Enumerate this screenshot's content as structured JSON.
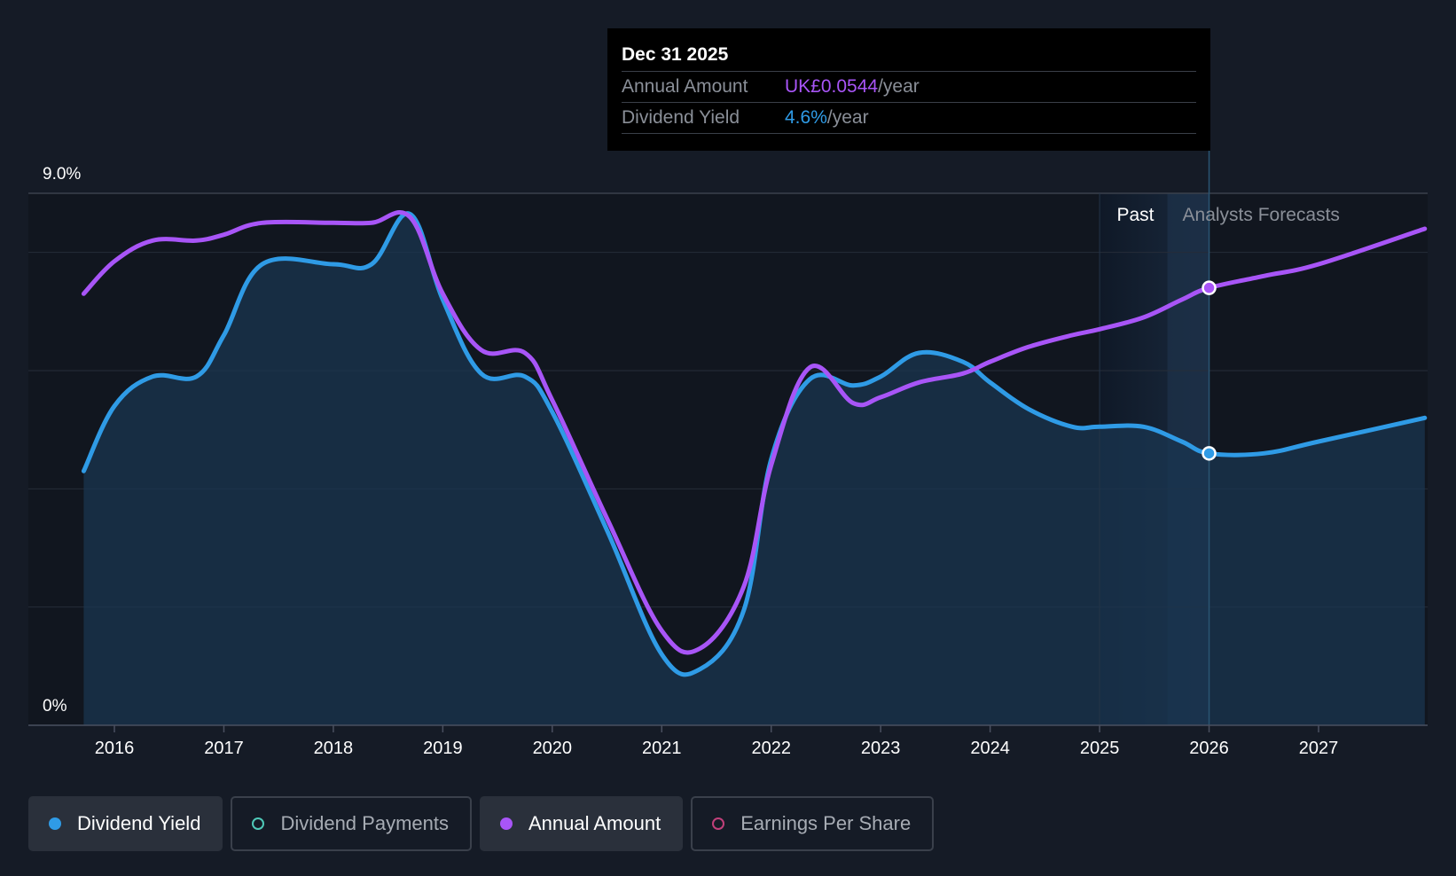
{
  "chart_data": {
    "type": "line",
    "x_range": [
      2015.72,
      2027.97
    ],
    "y_range": [
      0,
      9.0
    ],
    "y_unit": "%",
    "y_tick_labels": [
      "9.0%",
      "0%"
    ],
    "x_tick_labels": [
      "2016",
      "2017",
      "2018",
      "2019",
      "2020",
      "2021",
      "2022",
      "2023",
      "2024",
      "2025",
      "2026",
      "2027"
    ],
    "x_tick_values": [
      2016,
      2017,
      2018,
      2019,
      2020,
      2021,
      2022,
      2023,
      2024,
      2025,
      2026,
      2027
    ],
    "grid": true,
    "past_label": "Past",
    "forecast_label": "Analysts Forecasts",
    "past_forecast_boundary": 2026.0,
    "highlight_start": 2025.0,
    "series": [
      {
        "name": "Dividend Yield",
        "color": "#2f9be6",
        "filled": true,
        "points": [
          [
            2015.72,
            4.3
          ],
          [
            2016.0,
            5.4
          ],
          [
            2016.35,
            5.9
          ],
          [
            2016.75,
            5.9
          ],
          [
            2017.0,
            6.6
          ],
          [
            2017.35,
            7.8
          ],
          [
            2018.0,
            7.8
          ],
          [
            2018.35,
            7.8
          ],
          [
            2018.7,
            8.65
          ],
          [
            2019.0,
            7.2
          ],
          [
            2019.35,
            5.95
          ],
          [
            2019.75,
            5.9
          ],
          [
            2020.0,
            5.3
          ],
          [
            2020.5,
            3.3
          ],
          [
            2021.0,
            1.2
          ],
          [
            2021.35,
            0.95
          ],
          [
            2021.75,
            1.95
          ],
          [
            2022.0,
            4.5
          ],
          [
            2022.35,
            5.85
          ],
          [
            2022.75,
            5.75
          ],
          [
            2023.0,
            5.9
          ],
          [
            2023.35,
            6.3
          ],
          [
            2023.75,
            6.15
          ],
          [
            2024.0,
            5.8
          ],
          [
            2024.35,
            5.35
          ],
          [
            2024.75,
            5.05
          ],
          [
            2025.0,
            5.05
          ],
          [
            2025.4,
            5.05
          ],
          [
            2025.75,
            4.8
          ],
          [
            2026.0,
            4.6
          ],
          [
            2026.5,
            4.6
          ],
          [
            2027.0,
            4.8
          ],
          [
            2027.97,
            5.2
          ]
        ]
      },
      {
        "name": "Annual Amount",
        "color": "#a855f7",
        "filled": false,
        "points": [
          [
            2015.72,
            7.3
          ],
          [
            2016.0,
            7.85
          ],
          [
            2016.35,
            8.2
          ],
          [
            2016.75,
            8.2
          ],
          [
            2017.0,
            8.3
          ],
          [
            2017.35,
            8.5
          ],
          [
            2018.0,
            8.5
          ],
          [
            2018.35,
            8.5
          ],
          [
            2018.7,
            8.6
          ],
          [
            2019.0,
            7.3
          ],
          [
            2019.35,
            6.35
          ],
          [
            2019.75,
            6.3
          ],
          [
            2020.0,
            5.5
          ],
          [
            2020.5,
            3.5
          ],
          [
            2021.0,
            1.6
          ],
          [
            2021.35,
            1.3
          ],
          [
            2021.75,
            2.35
          ],
          [
            2022.0,
            4.4
          ],
          [
            2022.35,
            6.05
          ],
          [
            2022.75,
            5.45
          ],
          [
            2023.0,
            5.55
          ],
          [
            2023.35,
            5.8
          ],
          [
            2023.75,
            5.95
          ],
          [
            2024.0,
            6.15
          ],
          [
            2024.35,
            6.4
          ],
          [
            2024.75,
            6.6
          ],
          [
            2025.0,
            6.7
          ],
          [
            2025.4,
            6.9
          ],
          [
            2025.75,
            7.2
          ],
          [
            2026.0,
            7.4
          ],
          [
            2026.5,
            7.6
          ],
          [
            2027.0,
            7.8
          ],
          [
            2027.97,
            8.4
          ]
        ]
      }
    ],
    "highlighted_points": [
      {
        "series": "Annual Amount",
        "x": 2026.0,
        "y": 7.4
      },
      {
        "series": "Dividend Yield",
        "x": 2026.0,
        "y": 4.6
      }
    ]
  },
  "tooltip": {
    "date": "Dec 31 2025",
    "annual_amount_label": "Annual Amount",
    "annual_amount_value": "UK£0.0544",
    "dividend_yield_label": "Dividend Yield",
    "dividend_yield_value": "4.6%",
    "unit": "/year"
  },
  "legend": [
    {
      "label": "Dividend Yield",
      "color": "#2f9be6",
      "active": true,
      "marker": "filled"
    },
    {
      "label": "Dividend Payments",
      "color": "#4fc9b8",
      "active": false,
      "marker": "hollow"
    },
    {
      "label": "Annual Amount",
      "color": "#a855f7",
      "active": true,
      "marker": "filled"
    },
    {
      "label": "Earnings Per Share",
      "color": "#c0407a",
      "active": false,
      "marker": "hollow"
    }
  ]
}
